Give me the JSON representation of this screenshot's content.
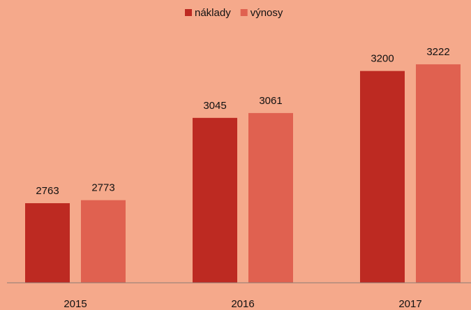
{
  "chart_data": {
    "type": "bar",
    "categories": [
      "2015",
      "2016",
      "2017"
    ],
    "series": [
      {
        "name": "náklady",
        "color": "#bd2a22",
        "values": [
          2763,
          3045,
          3200
        ]
      },
      {
        "name": "výnosy",
        "color": "#e06150",
        "values": [
          2773,
          3061,
          3222
        ]
      }
    ],
    "ylim": [
      2500,
      3400
    ],
    "legend": "top"
  }
}
